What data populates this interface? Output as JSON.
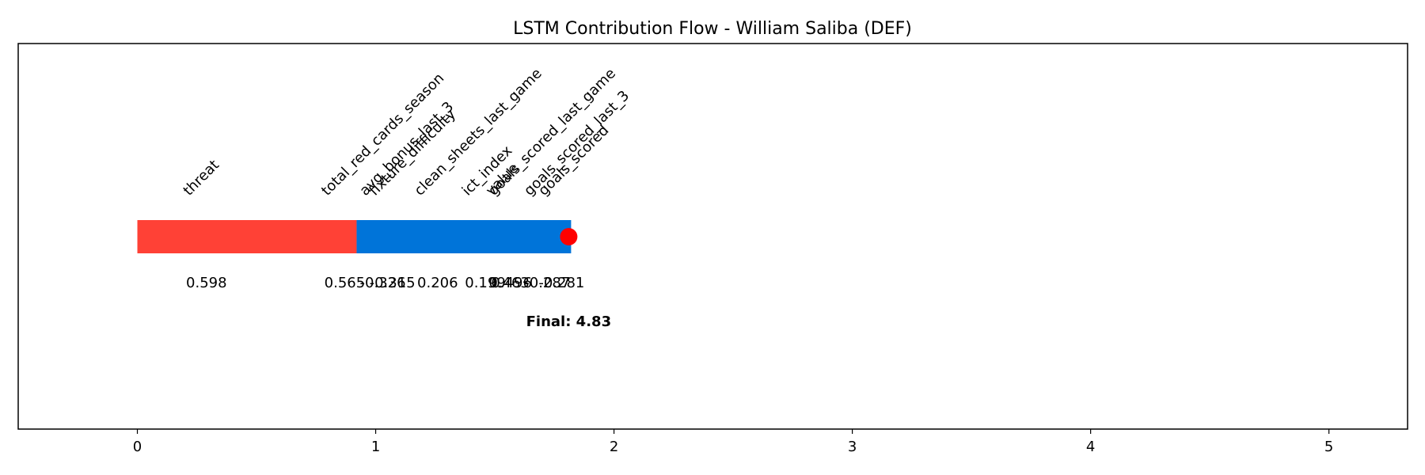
{
  "chart_data": {
    "type": "bar",
    "title": "LSTM Contribution Flow - William Saliba (DEF)",
    "xlabel": "",
    "ylabel": "",
    "xlim": [
      -0.5,
      5.33
    ],
    "xticks": [
      "0",
      "1",
      "2",
      "3",
      "4",
      "5"
    ],
    "xtick_values": [
      0,
      1,
      2,
      3,
      4,
      5
    ],
    "grid": false,
    "features": [
      {
        "name": "threat",
        "value_label": "0.598",
        "x": 0.29
      },
      {
        "name": "total_red_cards_season",
        "value_label": "0.565",
        "x": 0.87
      },
      {
        "name": "avg_bonus_last_3",
        "value_label": "-0.326",
        "x": 1.03
      },
      {
        "name": "fixture_difficulty",
        "value_label": "-0.315",
        "x": 1.07
      },
      {
        "name": "clean_sheets_last_game",
        "value_label": "0.206",
        "x": 1.26
      },
      {
        "name": "ict_index",
        "value_label": "0.199",
        "x": 1.46
      },
      {
        "name": "value",
        "value_label": "0.463",
        "x": 1.56
      },
      {
        "name": "goals_scored_last_game",
        "value_label": "0.496",
        "x": 1.57
      },
      {
        "name": "goals_scored_last_3",
        "value_label": "-0.287",
        "x": 1.72
      },
      {
        "name": "goals_scored",
        "value_label": "-0.281",
        "x": 1.78
      }
    ],
    "segments": [
      {
        "start": 0.0,
        "end": 0.92,
        "color": "#ff4136",
        "sign": "positive"
      },
      {
        "start": 0.92,
        "end": 1.82,
        "color": "#0074d9",
        "sign": "negative"
      }
    ],
    "final_point": {
      "x": 1.81,
      "color": "#ff0000"
    },
    "final_label": "Final: 4.83"
  }
}
